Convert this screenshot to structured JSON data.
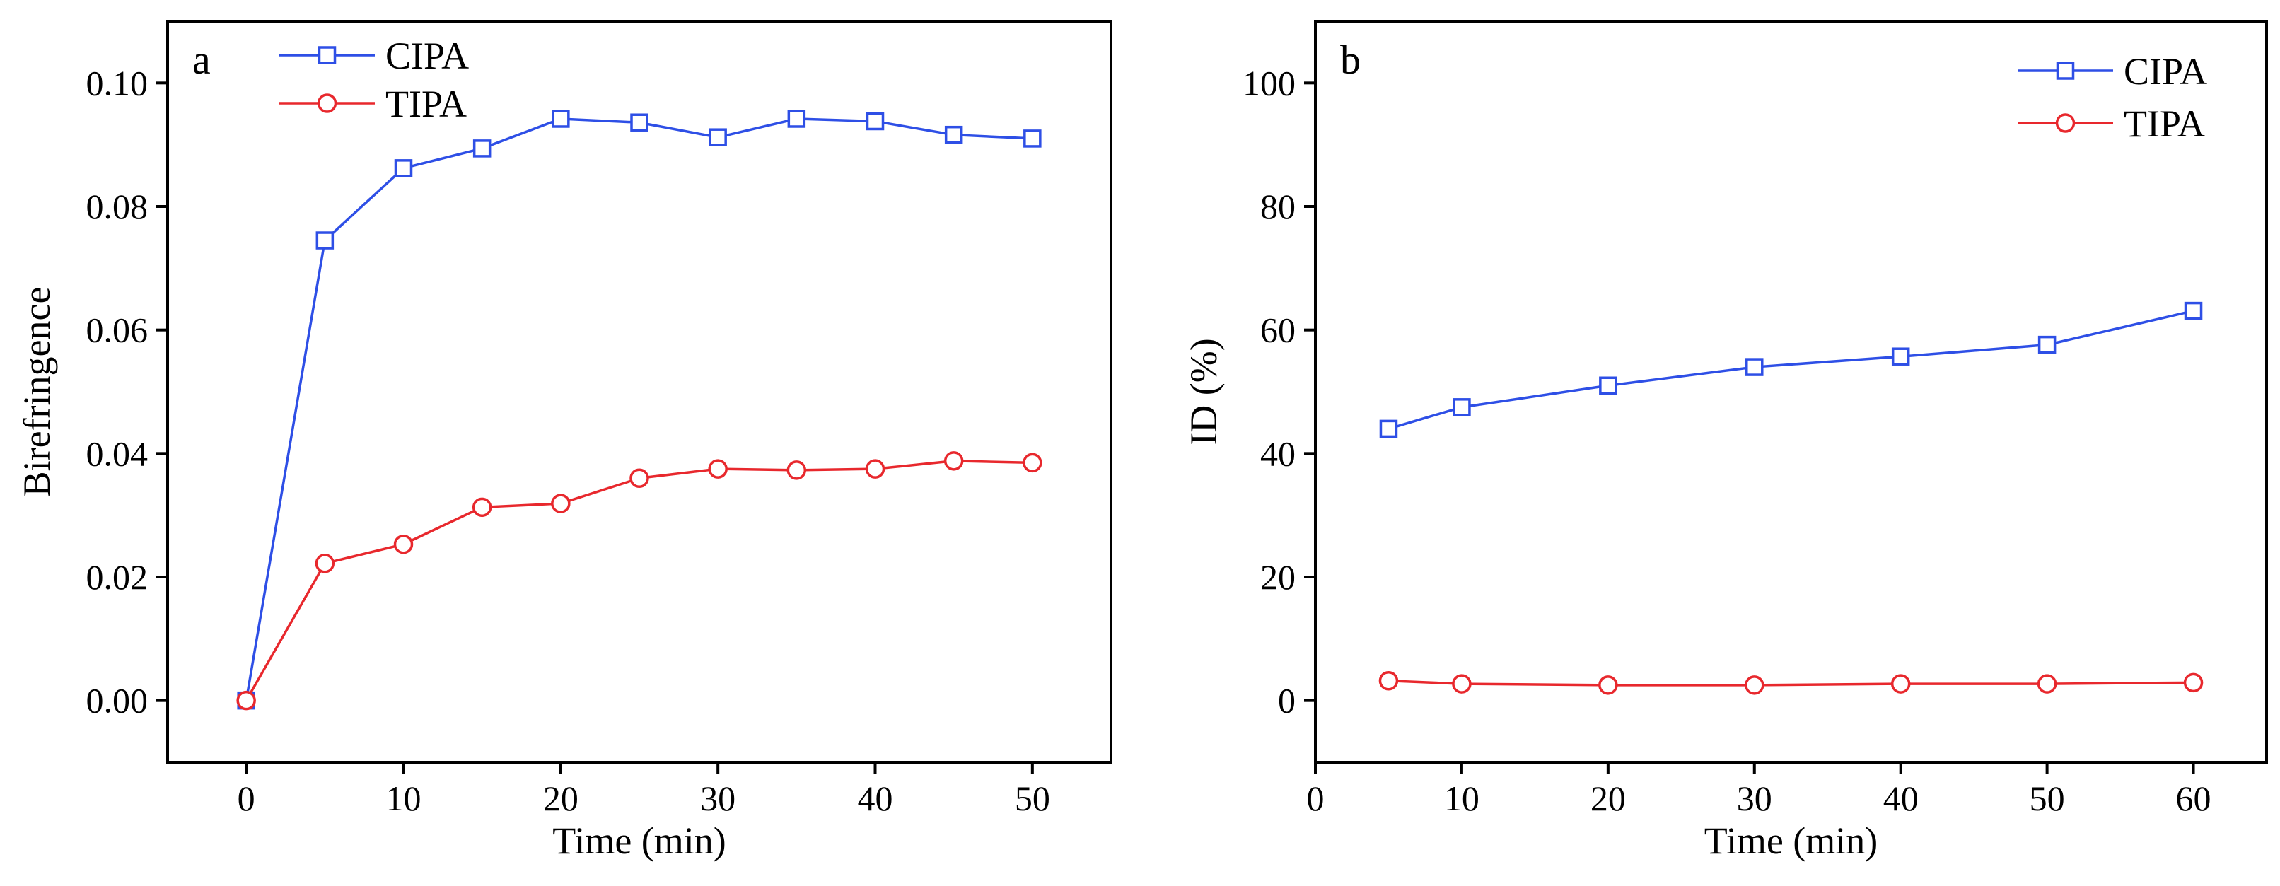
{
  "colors": {
    "cipa": "#2e4fe6",
    "tipa": "#e8282d",
    "axis": "#000000",
    "background": "#ffffff"
  },
  "chart_data": [
    {
      "type": "line",
      "panel_label": "a",
      "xlabel": "Time (min)",
      "ylabel": "Birefringence",
      "xlim": [
        -5,
        55
      ],
      "ylim": [
        -0.01,
        0.11
      ],
      "xticks": [
        0,
        10,
        20,
        30,
        40,
        50
      ],
      "xtick_labels": [
        "0",
        "10",
        "20",
        "30",
        "40",
        "50"
      ],
      "yticks": [
        0,
        0.02,
        0.04,
        0.06,
        0.08,
        0.1
      ],
      "ytick_labels": [
        "0.00",
        "0.02",
        "0.04",
        "0.06",
        "0.08",
        "0.10"
      ],
      "legend_position": "top-left",
      "grid": false,
      "series": [
        {
          "name": "CIPA",
          "marker": "square",
          "color_key": "cipa",
          "x": [
            0,
            5,
            10,
            15,
            20,
            25,
            30,
            35,
            40,
            45,
            50
          ],
          "values": [
            0.0,
            0.0745,
            0.0862,
            0.0894,
            0.0942,
            0.0936,
            0.0912,
            0.0942,
            0.0938,
            0.0916,
            0.091
          ]
        },
        {
          "name": "TIPA",
          "marker": "circle",
          "color_key": "tipa",
          "x": [
            0,
            5,
            10,
            15,
            20,
            25,
            30,
            35,
            40,
            45,
            50
          ],
          "values": [
            0.0,
            0.0222,
            0.0253,
            0.0313,
            0.0319,
            0.036,
            0.0375,
            0.0373,
            0.0375,
            0.0388,
            0.0385
          ]
        }
      ]
    },
    {
      "type": "line",
      "panel_label": "b",
      "xlabel": "Time (min)",
      "ylabel": "ID (%)",
      "xlim": [
        0,
        65
      ],
      "ylim": [
        -10,
        110
      ],
      "xticks": [
        0,
        10,
        20,
        30,
        40,
        50,
        60
      ],
      "xtick_labels": [
        "0",
        "10",
        "20",
        "30",
        "40",
        "50",
        "60"
      ],
      "yticks": [
        0,
        20,
        40,
        60,
        80,
        100
      ],
      "ytick_labels": [
        "0",
        "20",
        "40",
        "60",
        "80",
        "100"
      ],
      "legend_position": "top-right",
      "grid": false,
      "series": [
        {
          "name": "CIPA",
          "marker": "square",
          "color_key": "cipa",
          "x": [
            5,
            10,
            20,
            30,
            40,
            50,
            60
          ],
          "values": [
            44.0,
            47.5,
            51.0,
            54.0,
            55.7,
            57.6,
            63.1
          ]
        },
        {
          "name": "TIPA",
          "marker": "circle",
          "color_key": "tipa",
          "x": [
            5,
            10,
            20,
            30,
            40,
            50,
            60
          ],
          "values": [
            3.2,
            2.7,
            2.5,
            2.5,
            2.7,
            2.7,
            2.9
          ]
        }
      ]
    }
  ]
}
